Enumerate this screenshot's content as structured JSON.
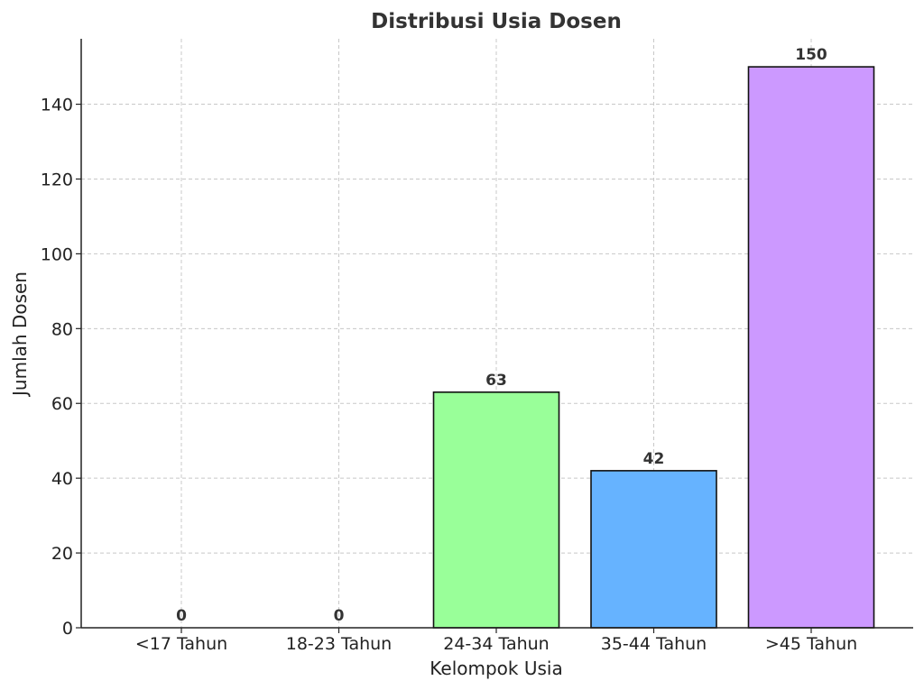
{
  "chart_data": {
    "type": "bar",
    "title": "Distribusi Usia Dosen",
    "xlabel": "Kelompok Usia",
    "ylabel": "Jumlah Dosen",
    "categories": [
      "<17 Tahun",
      "18-23 Tahun",
      "24-34 Tahun",
      "35-44 Tahun",
      ">45 Tahun"
    ],
    "values": [
      0,
      0,
      63,
      42,
      150
    ],
    "data_labels": [
      "0",
      "0",
      "63",
      "42",
      "150"
    ],
    "colors": [
      "#ff9999",
      "#66b3ff",
      "#99ff99",
      "#66b3ff",
      "#cc99ff"
    ],
    "ylim": [
      0,
      157.5
    ],
    "yticks": [
      0,
      20,
      40,
      60,
      80,
      100,
      120,
      140
    ],
    "grid": true,
    "legend": "none"
  }
}
